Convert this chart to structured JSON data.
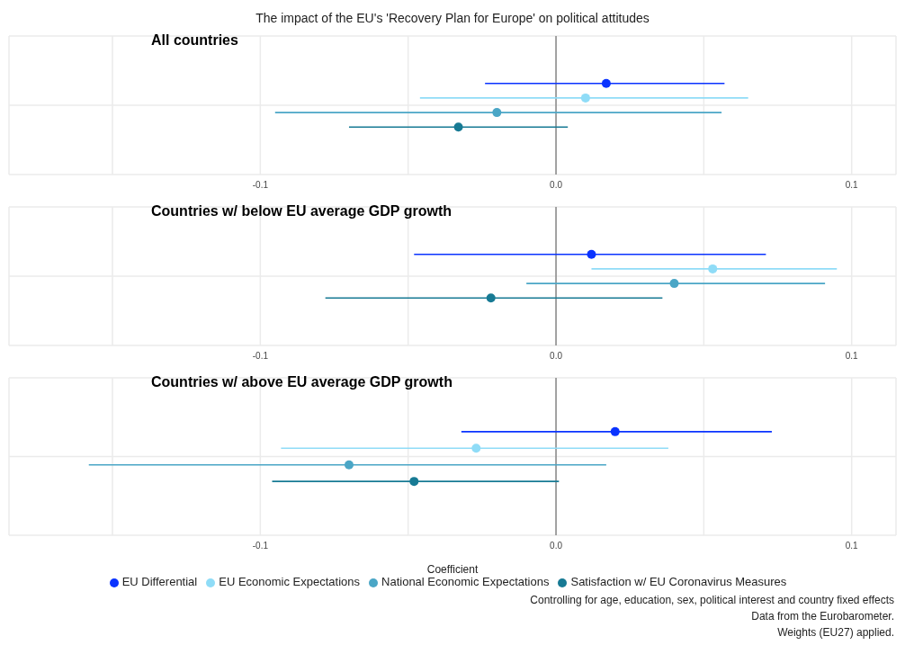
{
  "chart_data": [
    {
      "type": "scatter",
      "orientation": "horizontal",
      "title": "The impact of the EU's 'Recovery Plan for Europe' on political attitudes",
      "subtitle": "All countries",
      "categories": [
        null
      ],
      "xlim": [
        -0.185,
        0.115
      ],
      "xticks": [
        {
          "value": -0.15,
          "label": null
        },
        {
          "value": -0.1,
          "label": "-0.1"
        },
        {
          "value": -0.05,
          "label": null
        },
        {
          "value": 0,
          "label": "0.0"
        },
        {
          "value": 0.05,
          "label": null
        },
        {
          "value": 0.1,
          "label": "0.1"
        }
      ],
      "grid": true,
      "marker": "circle",
      "ref_lines": [
        {
          "axis": "x",
          "value": 0,
          "color": "#555555"
        }
      ],
      "series": [
        {
          "color": "#0a33ff",
          "values": [
            0.017
          ],
          "errors": [
            [
              -0.024,
              0.057
            ]
          ]
        },
        {
          "color": "#8fdcf7",
          "values": [
            0.01
          ],
          "errors": [
            [
              -0.046,
              0.065
            ]
          ]
        },
        {
          "color": "#4aa6c6",
          "values": [
            -0.02
          ],
          "errors": [
            [
              -0.095,
              0.056
            ]
          ]
        },
        {
          "color": "#177a94",
          "values": [
            -0.033
          ],
          "errors": [
            [
              -0.07,
              0.004
            ]
          ]
        }
      ]
    },
    {
      "type": "scatter",
      "orientation": "horizontal",
      "subtitle": "Countries w/ below EU average GDP growth",
      "categories": [
        null
      ],
      "xlim": [
        -0.185,
        0.115
      ],
      "xticks": [
        {
          "value": -0.15,
          "label": null
        },
        {
          "value": -0.1,
          "label": "-0.1"
        },
        {
          "value": -0.05,
          "label": null
        },
        {
          "value": 0,
          "label": "0.0"
        },
        {
          "value": 0.05,
          "label": null
        },
        {
          "value": 0.1,
          "label": "0.1"
        }
      ],
      "grid": true,
      "marker": "circle",
      "ref_lines": [
        {
          "axis": "x",
          "value": 0,
          "color": "#555555"
        }
      ],
      "series": [
        {
          "color": "#0a33ff",
          "values": [
            0.012
          ],
          "errors": [
            [
              -0.048,
              0.071
            ]
          ]
        },
        {
          "color": "#8fdcf7",
          "values": [
            0.053
          ],
          "errors": [
            [
              0.012,
              0.095
            ]
          ]
        },
        {
          "color": "#4aa6c6",
          "values": [
            0.04
          ],
          "errors": [
            [
              -0.01,
              0.091
            ]
          ]
        },
        {
          "color": "#177a94",
          "values": [
            -0.022
          ],
          "errors": [
            [
              -0.078,
              0.036
            ]
          ]
        }
      ]
    },
    {
      "type": "scatter",
      "orientation": "horizontal",
      "subtitle": "Countries w/ above EU average GDP growth",
      "xlabel": "Coefficient",
      "categories": [
        null
      ],
      "xlim": [
        -0.185,
        0.115
      ],
      "xticks": [
        {
          "value": -0.15,
          "label": null
        },
        {
          "value": -0.1,
          "label": "-0.1"
        },
        {
          "value": -0.05,
          "label": null
        },
        {
          "value": 0,
          "label": "0.0"
        },
        {
          "value": 0.05,
          "label": null
        },
        {
          "value": 0.1,
          "label": "0.1"
        }
      ],
      "grid": true,
      "marker": "circle",
      "legend": "bottom",
      "ref_lines": [
        {
          "axis": "x",
          "value": 0,
          "color": "#555555"
        }
      ],
      "annotations": [
        "Controlling for age, education, sex, political interest and country fixed effects",
        "Data from the Eurobarometer.",
        "Weights (EU27) applied."
      ],
      "series": [
        {
          "name": "EU Differential",
          "color": "#0a33ff",
          "values": [
            0.02
          ],
          "errors": [
            [
              -0.032,
              0.073
            ]
          ]
        },
        {
          "name": "EU Economic Expectations",
          "color": "#8fdcf7",
          "values": [
            -0.027
          ],
          "errors": [
            [
              -0.093,
              0.038
            ]
          ]
        },
        {
          "name": "National Economic Expectations",
          "color": "#4aa6c6",
          "values": [
            -0.07
          ],
          "errors": [
            [
              -0.158,
              0.017
            ]
          ]
        },
        {
          "name": "Satisfaction w/ EU Coronavirus Measures",
          "color": "#177a94",
          "values": [
            -0.048
          ],
          "errors": [
            [
              -0.096,
              0.001
            ]
          ]
        }
      ]
    }
  ]
}
